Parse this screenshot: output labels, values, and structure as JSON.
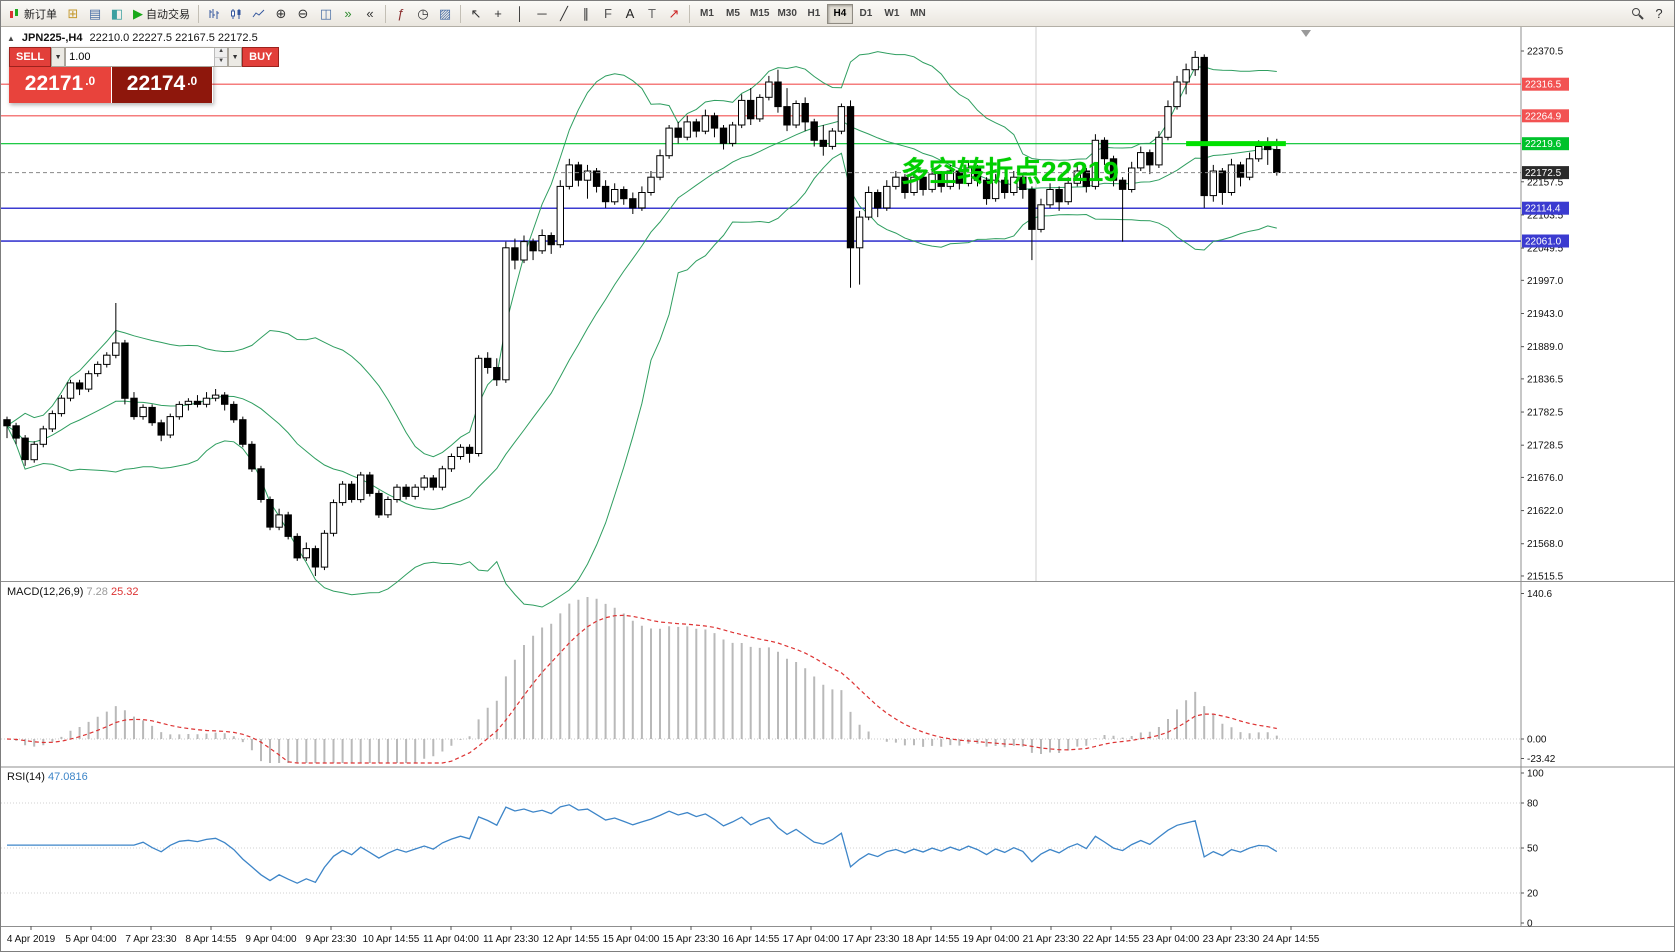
{
  "colors": {
    "resistance_red": "#f25252",
    "support_blue": "#3b3bd0",
    "pivot_green": "#00c22b",
    "pivot_highlight": "#00e100",
    "annotation_green": "#00cf00",
    "current_price_badge": "#2b2b2b",
    "bollinger": "#2f9e60",
    "macd_histogram": "#b9b9b9",
    "macd_signal": "#dd3333",
    "rsi_line": "#3d85c8",
    "sell_button": "#e23f3a",
    "bid_panel": "#e8433c",
    "ask_panel": "#8e170c"
  },
  "toolbar": {
    "new_order_label": "新订单",
    "autotrading_label": "自动交易",
    "icons_file_group": [
      "new-chart-icon",
      "profiles-icon",
      "meta-editor-icon"
    ],
    "icons_chart_type": [
      "bar-chart-icon",
      "candlestick-chart-icon",
      "line-chart-icon"
    ],
    "icons_zoom": [
      "zoom-in-icon",
      "zoom-out-icon"
    ],
    "icons_window": [
      "tile-windows-icon",
      "auto-scroll-icon",
      "chart-shift-icon"
    ],
    "icons_objects": [
      "indicators-icon",
      "periods-icon",
      "templates-icon"
    ],
    "icons_line_tools": [
      "cursor-icon",
      "crosshair-icon",
      "vertical-line-icon",
      "horizontal-line-icon",
      "trendline-icon",
      "equidistant-channel-icon",
      "fibonacci-icon",
      "text-icon",
      "text-label-icon",
      "arrow-tools-icon"
    ],
    "icons_right": [
      "search-icon",
      "help-icon"
    ],
    "timeframes": [
      "M1",
      "M5",
      "M15",
      "M30",
      "H1",
      "H4",
      "D1",
      "W1",
      "MN"
    ],
    "active_timeframe": "H4"
  },
  "chart": {
    "symbol_period": "JPN225-,H4",
    "ohlc_values": "22210.0 22227.5 22167.5 22172.5",
    "annotation": "多空转折点22219",
    "current_price": "22172.5",
    "levels": [
      {
        "price": 22316.5,
        "label": "22316.5",
        "color": "#f25252"
      },
      {
        "price": 22264.9,
        "label": "22264.9",
        "color": "#f25252"
      },
      {
        "price": 22219.6,
        "label": "22219.6",
        "color": "#00c22b",
        "highlight": true
      },
      {
        "price": 22114.4,
        "label": "22114.4",
        "color": "#3b3bd0"
      },
      {
        "price": 22061.0,
        "label": "22061.0",
        "color": "#3b3bd0"
      }
    ],
    "price_ticks": [
      "22370.5",
      "22157.5",
      "22103.5",
      "22049.5",
      "21997.0",
      "21943.0",
      "21889.0",
      "21836.5",
      "21782.5",
      "21728.5",
      "21676.0",
      "21622.0",
      "21568.0",
      "21515.5"
    ]
  },
  "trade_panel": {
    "sell_label": "SELL",
    "buy_label": "BUY",
    "volume": "1.00",
    "sell_price_main": "22171",
    "sell_price_frac": ".0",
    "buy_price_main": "22174",
    "buy_price_frac": ".0"
  },
  "macd_panel": {
    "name": "MACD(12,26,9)",
    "value_main": "7.28",
    "value_signal": "25.32",
    "axis_max": "140.6",
    "axis_zero": "0.00",
    "axis_min": "-23.42"
  },
  "rsi_panel": {
    "name": "RSI(14)",
    "value": "47.0816",
    "axis_ticks": [
      100,
      80,
      50,
      20,
      0
    ],
    "level_lines": [
      80,
      50,
      20
    ]
  },
  "time_axis": {
    "labels": [
      "4 Apr 2019",
      "5 Apr 04:00",
      "7 Apr 23:30",
      "8 Apr 14:55",
      "9 Apr 04:00",
      "9 Apr 23:30",
      "10 Apr 14:55",
      "11 Apr 04:00",
      "11 Apr 23:30",
      "12 Apr 14:55",
      "15 Apr 04:00",
      "15 Apr 23:30",
      "16 Apr 14:55",
      "17 Apr 04:00",
      "17 Apr 23:30",
      "18 Apr 14:55",
      "19 Apr 04:00",
      "21 Apr 23:30",
      "22 Apr 14:55",
      "23 Apr 04:00",
      "23 Apr 23:30",
      "24 Apr 14:55"
    ]
  },
  "chart_data": {
    "type": "candlestick",
    "symbol": "JPN225-",
    "timeframe": "H4",
    "visible_price_range": [
      21515.5,
      22370.5
    ],
    "last_ohlc": [
      22210.0,
      22227.5,
      22167.5,
      22172.5
    ],
    "overlays": {
      "bollinger_bands": {
        "period": 20,
        "deviation": 2
      },
      "horizontal_levels": [
        22316.5,
        22264.9,
        22219.6,
        22114.4,
        22061.0
      ],
      "highlight_segment": {
        "price": 22219.6,
        "from_bar": 130,
        "to_bar": 141
      }
    },
    "indicators": [
      {
        "name": "MACD",
        "params": [
          12,
          26,
          9
        ],
        "values_shown": [
          7.28,
          25.32
        ],
        "scale": [
          -23.42,
          140.6
        ]
      },
      {
        "name": "RSI",
        "params": [
          14
        ],
        "value_shown": 47.0816,
        "scale": [
          0,
          100
        ]
      }
    ],
    "candles": [
      [
        21770,
        21775,
        21740,
        21760
      ],
      [
        21760,
        21765,
        21730,
        21740
      ],
      [
        21740,
        21745,
        21695,
        21705
      ],
      [
        21705,
        21735,
        21700,
        21730
      ],
      [
        21730,
        21760,
        21725,
        21755
      ],
      [
        21755,
        21785,
        21750,
        21780
      ],
      [
        21780,
        21810,
        21775,
        21805
      ],
      [
        21805,
        21835,
        21800,
        21830
      ],
      [
        21830,
        21835,
        21810,
        21820
      ],
      [
        21820,
        21850,
        21815,
        21845
      ],
      [
        21845,
        21865,
        21840,
        21860
      ],
      [
        21860,
        21880,
        21855,
        21875
      ],
      [
        21875,
        21960,
        21870,
        21895
      ],
      [
        21895,
        21900,
        21795,
        21805
      ],
      [
        21805,
        21815,
        21770,
        21775
      ],
      [
        21775,
        21795,
        21770,
        21790
      ],
      [
        21790,
        21795,
        21760,
        21765
      ],
      [
        21765,
        21770,
        21735,
        21745
      ],
      [
        21745,
        21780,
        21740,
        21775
      ],
      [
        21775,
        21800,
        21770,
        21795
      ],
      [
        21795,
        21805,
        21785,
        21800
      ],
      [
        21800,
        21810,
        21790,
        21795
      ],
      [
        21795,
        21815,
        21790,
        21805
      ],
      [
        21805,
        21820,
        21800,
        21810
      ],
      [
        21810,
        21815,
        21785,
        21795
      ],
      [
        21795,
        21800,
        21765,
        21770
      ],
      [
        21770,
        21775,
        21725,
        21730
      ],
      [
        21730,
        21735,
        21685,
        21690
      ],
      [
        21690,
        21695,
        21635,
        21640
      ],
      [
        21640,
        21645,
        21590,
        21595
      ],
      [
        21595,
        21625,
        21590,
        21615
      ],
      [
        21615,
        21620,
        21575,
        21580
      ],
      [
        21580,
        21585,
        21540,
        21545
      ],
      [
        21545,
        21570,
        21540,
        21560
      ],
      [
        21560,
        21565,
        21515.5,
        21530
      ],
      [
        21530,
        21590,
        21525,
        21585
      ],
      [
        21585,
        21640,
        21580,
        21635
      ],
      [
        21635,
        21670,
        21630,
        21665
      ],
      [
        21665,
        21670,
        21635,
        21640
      ],
      [
        21640,
        21685,
        21635,
        21680
      ],
      [
        21680,
        21685,
        21645,
        21650
      ],
      [
        21650,
        21655,
        21610,
        21615
      ],
      [
        21615,
        21645,
        21610,
        21640
      ],
      [
        21640,
        21665,
        21635,
        21660
      ],
      [
        21660,
        21665,
        21640,
        21645
      ],
      [
        21645,
        21665,
        21640,
        21660
      ],
      [
        21660,
        21680,
        21655,
        21675
      ],
      [
        21675,
        21680,
        21655,
        21660
      ],
      [
        21660,
        21695,
        21655,
        21690
      ],
      [
        21690,
        21715,
        21685,
        21710
      ],
      [
        21710,
        21730,
        21705,
        21725
      ],
      [
        21725,
        21730,
        21700,
        21715
      ],
      [
        21715,
        21875,
        21710,
        21870
      ],
      [
        21870,
        21880,
        21845,
        21855
      ],
      [
        21855,
        21870,
        21825,
        21835
      ],
      [
        21835,
        22060,
        21830,
        22050
      ],
      [
        22050,
        22065,
        22015,
        22030
      ],
      [
        22030,
        22070,
        22025,
        22060
      ],
      [
        22060,
        22065,
        22030,
        22045
      ],
      [
        22045,
        22080,
        22040,
        22070
      ],
      [
        22070,
        22075,
        22040,
        22055
      ],
      [
        22055,
        22160,
        22050,
        22150
      ],
      [
        22150,
        22195,
        22145,
        22185
      ],
      [
        22185,
        22190,
        22150,
        22160
      ],
      [
        22160,
        22185,
        22130,
        22175
      ],
      [
        22175,
        22180,
        22140,
        22150
      ],
      [
        22150,
        22160,
        22115,
        22125
      ],
      [
        22125,
        22155,
        22120,
        22145
      ],
      [
        22145,
        22150,
        22120,
        22130
      ],
      [
        22130,
        22140,
        22105,
        22115
      ],
      [
        22115,
        22150,
        22110,
        22140
      ],
      [
        22140,
        22175,
        22135,
        22165
      ],
      [
        22165,
        22210,
        22160,
        22200
      ],
      [
        22200,
        22250,
        22195,
        22245
      ],
      [
        22245,
        22255,
        22220,
        22230
      ],
      [
        22230,
        22265,
        22225,
        22255
      ],
      [
        22255,
        22260,
        22230,
        22240
      ],
      [
        22240,
        22275,
        22235,
        22265
      ],
      [
        22265,
        22270,
        22230,
        22245
      ],
      [
        22245,
        22250,
        22210,
        22220
      ],
      [
        22220,
        22255,
        22215,
        22250
      ],
      [
        22250,
        22300,
        22245,
        22290
      ],
      [
        22290,
        22310,
        22250,
        22260
      ],
      [
        22260,
        22300,
        22255,
        22295
      ],
      [
        22295,
        22330,
        22290,
        22320
      ],
      [
        22320,
        22340,
        22270,
        22280
      ],
      [
        22280,
        22310,
        22240,
        22250
      ],
      [
        22250,
        22290,
        22245,
        22285
      ],
      [
        22285,
        22295,
        22240,
        22255
      ],
      [
        22255,
        22260,
        22215,
        22225
      ],
      [
        22225,
        22250,
        22200,
        22215
      ],
      [
        22215,
        22245,
        22210,
        22240
      ],
      [
        22240,
        22285,
        22235,
        22280
      ],
      [
        22280,
        22290,
        21985,
        22050
      ],
      [
        22050,
        22110,
        21990,
        22100
      ],
      [
        22100,
        22150,
        22095,
        22140
      ],
      [
        22140,
        22145,
        22100,
        22115
      ],
      [
        22115,
        22160,
        22110,
        22150
      ],
      [
        22150,
        22175,
        22145,
        22165
      ],
      [
        22165,
        22170,
        22130,
        22140
      ],
      [
        22140,
        22175,
        22135,
        22165
      ],
      [
        22165,
        22170,
        22135,
        22145
      ],
      [
        22145,
        22180,
        22140,
        22170
      ],
      [
        22170,
        22175,
        22140,
        22150
      ],
      [
        22150,
        22185,
        22145,
        22175
      ],
      [
        22175,
        22180,
        22145,
        22155
      ],
      [
        22155,
        22190,
        22150,
        22180
      ],
      [
        22180,
        22185,
        22150,
        22160
      ],
      [
        22160,
        22165,
        22120,
        22130
      ],
      [
        22130,
        22170,
        22125,
        22160
      ],
      [
        22160,
        22165,
        22130,
        22140
      ],
      [
        22140,
        22175,
        22135,
        22165
      ],
      [
        22165,
        22170,
        22130,
        22145
      ],
      [
        22145,
        22150,
        22030,
        22080
      ],
      [
        22080,
        22130,
        22075,
        22120
      ],
      [
        22120,
        22155,
        22115,
        22145
      ],
      [
        22145,
        22150,
        22110,
        22125
      ],
      [
        22125,
        22165,
        22120,
        22155
      ],
      [
        22155,
        22185,
        22150,
        22175
      ],
      [
        22175,
        22180,
        22140,
        22150
      ],
      [
        22150,
        22235,
        22145,
        22225
      ],
      [
        22225,
        22230,
        22185,
        22195
      ],
      [
        22195,
        22200,
        22150,
        22160
      ],
      [
        22160,
        22165,
        22060,
        22145
      ],
      [
        22145,
        22190,
        22140,
        22180
      ],
      [
        22180,
        22215,
        22175,
        22205
      ],
      [
        22205,
        22210,
        22170,
        22185
      ],
      [
        22185,
        22240,
        22180,
        22230
      ],
      [
        22230,
        22290,
        22225,
        22280
      ],
      [
        22280,
        22330,
        22275,
        22320
      ],
      [
        22320,
        22350,
        22300,
        22340
      ],
      [
        22340,
        22370.5,
        22330,
        22360
      ],
      [
        22360,
        22365,
        22115,
        22135
      ],
      [
        22135,
        22185,
        22125,
        22175
      ],
      [
        22175,
        22180,
        22120,
        22140
      ],
      [
        22140,
        22195,
        22135,
        22185
      ],
      [
        22185,
        22190,
        22150,
        22165
      ],
      [
        22165,
        22205,
        22160,
        22195
      ],
      [
        22195,
        22225,
        22190,
        22215
      ],
      [
        22215,
        22230,
        22185,
        22210
      ],
      [
        22210,
        22227.5,
        22167.5,
        22172.5
      ]
    ]
  }
}
